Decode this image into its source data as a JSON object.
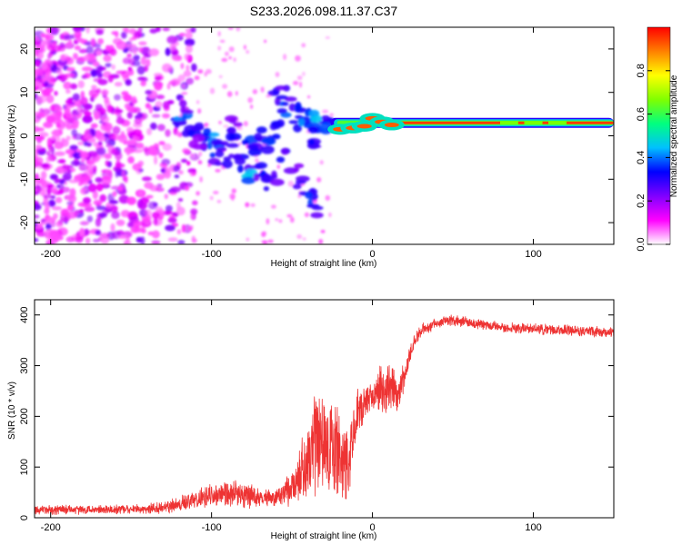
{
  "chart_data": [
    {
      "type": "heatmap",
      "title": "S233.2026.098.11.37.C37",
      "xlabel": "Height of straight line (km)",
      "ylabel": "Frequency (Hz)",
      "xlim": [
        -210,
        150
      ],
      "ylim": [
        -25,
        25
      ],
      "xticks": [
        -200,
        -100,
        0,
        100
      ],
      "yticks": [
        -20,
        -10,
        0,
        10,
        20
      ],
      "colorbar": {
        "label": "Normalized spectral amplitude",
        "range": [
          0.0,
          1.0
        ],
        "ticks": [
          0.0,
          0.2,
          0.4,
          0.6,
          0.8
        ],
        "tick_labels": [
          "0.0",
          "0.2",
          "0.4",
          "0.6",
          "0.8"
        ],
        "colormap": [
          "#ffffff",
          "#ff00ff",
          "#8000ff",
          "#0000ff",
          "#00c0ff",
          "#00ff80",
          "#80ff00",
          "#ffff00",
          "#ff8000",
          "#ff0000"
        ]
      },
      "features": [
        {
          "name": "noise region",
          "x_range": [
            -210,
            -115
          ],
          "freq_range": [
            -25,
            25
          ],
          "amplitude": 0.1
        },
        {
          "name": "scattered blobs",
          "x_range": [
            -120,
            -20
          ],
          "freq_range": [
            -17,
            10
          ],
          "amplitude": 0.3
        },
        {
          "name": "tone line",
          "x_range": [
            -25,
            150
          ],
          "frequency_hz": 3,
          "amplitude": 0.95
        }
      ]
    },
    {
      "type": "line",
      "title": "",
      "xlabel": "Height of straight line (km)",
      "ylabel": "SNR (10 * v/v)",
      "xlim": [
        -210,
        150
      ],
      "ylim": [
        0,
        430
      ],
      "xticks": [
        -200,
        -100,
        0,
        100
      ],
      "yticks": [
        0,
        100,
        200,
        300,
        400
      ],
      "color": "#ee3333",
      "series": [
        {
          "name": "SNR",
          "x": [
            -210,
            -180,
            -150,
            -130,
            -115,
            -100,
            -90,
            -80,
            -70,
            -60,
            -50,
            -40,
            -35,
            -30,
            -25,
            -20,
            -15,
            -10,
            -5,
            0,
            5,
            10,
            15,
            20,
            25,
            30,
            40,
            50,
            60,
            80,
            100,
            120,
            150
          ],
          "values": [
            15,
            16,
            16,
            20,
            30,
            45,
            50,
            45,
            40,
            40,
            55,
            110,
            150,
            140,
            150,
            120,
            100,
            200,
            220,
            240,
            250,
            260,
            240,
            280,
            340,
            370,
            385,
            390,
            385,
            375,
            372,
            370,
            365
          ],
          "noise": [
            10,
            10,
            10,
            12,
            20,
            25,
            30,
            30,
            20,
            20,
            40,
            90,
            110,
            110,
            120,
            120,
            80,
            60,
            50,
            40,
            60,
            60,
            50,
            40,
            20,
            15,
            12,
            12,
            12,
            12,
            12,
            12,
            12
          ]
        }
      ]
    }
  ]
}
